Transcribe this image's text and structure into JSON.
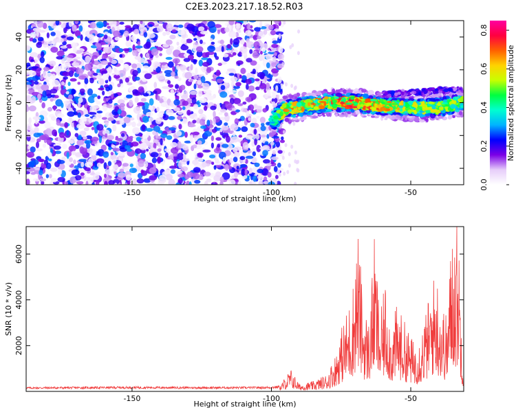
{
  "title": "C2E3.2023.217.18.52.R03",
  "chart_data": [
    {
      "type": "heatmap",
      "xlabel": "Height of straight line (km)",
      "ylabel": "Frequency (Hz)",
      "xlim": [
        -188,
        -31
      ],
      "ylim": [
        -50,
        50
      ],
      "xticks": [
        -150,
        -100,
        -50
      ],
      "yticks": [
        -40,
        -20,
        0,
        20,
        40
      ],
      "colorbar": {
        "label": "Normalized spectral amplitude",
        "range": [
          0.0,
          0.85
        ],
        "ticks": [
          0.0,
          0.2,
          0.4,
          0.6,
          0.8
        ],
        "colormap": [
          "#ffffff",
          "#e6cdfa",
          "#7b00e6",
          "#0000ff",
          "#00b3ff",
          "#00ffd0",
          "#00ff40",
          "#c8ff00",
          "#ffd200",
          "#ff6000",
          "#ff0040",
          "#ff00a0"
        ]
      },
      "description_points": [
        {
          "x": -188,
          "y": 0,
          "v": 0.1
        },
        {
          "x": -100,
          "y": -12,
          "v": 0.4
        },
        {
          "x": -95,
          "y": -4,
          "v": 0.6
        },
        {
          "x": -80,
          "y": 0,
          "v": 0.6
        },
        {
          "x": -70,
          "y": 0,
          "v": 0.7
        },
        {
          "x": -60,
          "y": -2,
          "v": 0.6
        },
        {
          "x": -50,
          "y": -3,
          "v": 0.5
        },
        {
          "x": -40,
          "y": -3,
          "v": 0.5
        },
        {
          "x": -33,
          "y": 0,
          "v": 0.5
        }
      ]
    },
    {
      "type": "line",
      "xlabel": "Height of straight line (km)",
      "ylabel": "SNR (10 * v/v)",
      "xlim": [
        -188,
        -31
      ],
      "ylim": [
        0,
        7200
      ],
      "xticks": [
        -150,
        -100,
        -50
      ],
      "yticks": [
        2000,
        4000,
        6000
      ],
      "line_color": "#f03c3c",
      "series": [
        {
          "x": [
            -188,
            -170,
            -150,
            -130,
            -110,
            -100,
            -97,
            -95,
            -93,
            -90,
            -85,
            -80,
            -77,
            -75,
            -73,
            -71,
            -69,
            -67,
            -65,
            -63,
            -61,
            -59,
            -57,
            -55,
            -53,
            -51,
            -49,
            -47,
            -45,
            -43,
            -41,
            -39,
            -37,
            -35,
            -34,
            -33,
            -32,
            -31
          ],
          "values": [
            150,
            160,
            170,
            160,
            160,
            170,
            200,
            600,
            900,
            300,
            400,
            700,
            1500,
            2500,
            3200,
            4000,
            6600,
            3500,
            2800,
            6200,
            3000,
            4500,
            2500,
            3500,
            3000,
            2500,
            2000,
            2200,
            3000,
            4000,
            5000,
            3600,
            3000,
            7000,
            6500,
            7200,
            3500,
            500
          ]
        }
      ]
    }
  ]
}
